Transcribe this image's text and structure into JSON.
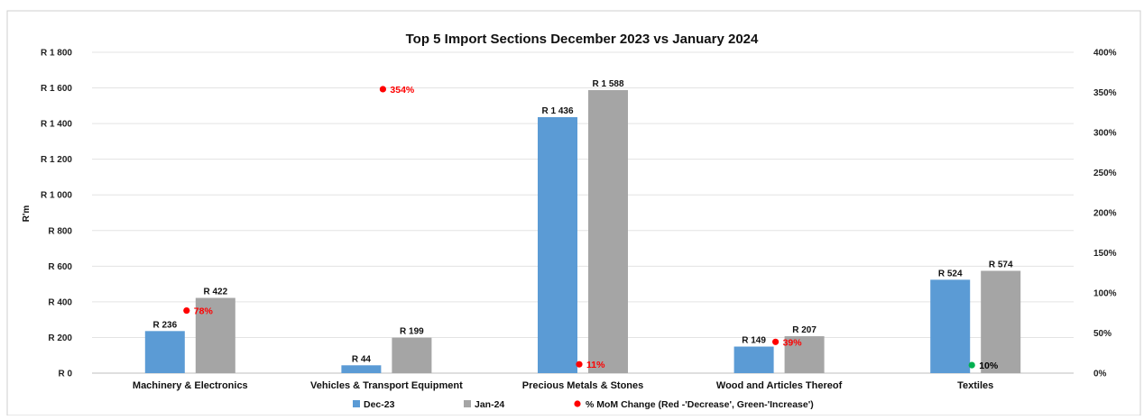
{
  "chart_data": {
    "type": "bar",
    "title": "Top 5 Import Sections December 2023 vs January 2024",
    "ylabel": "R'm",
    "categories": [
      "Machinery & Electronics",
      "Vehicles & Transport Equipment",
      "Precious Metals & Stones",
      "Wood and Articles Thereof",
      "Textiles"
    ],
    "series": [
      {
        "name": "Dec-23",
        "values": [
          236,
          44,
          1436,
          149,
          524
        ],
        "labels": [
          "R 236",
          "R 44",
          "R 1 436",
          "R 149",
          "R 524"
        ],
        "color": "#5b9bd5"
      },
      {
        "name": "Jan-24",
        "values": [
          422,
          199,
          1588,
          207,
          574
        ],
        "labels": [
          "R 422",
          "R 199",
          "R 1 588",
          "R 207",
          "R 574"
        ],
        "color": "#a5a5a5"
      }
    ],
    "pct_series": {
      "name": "% MoM Change (Red -'Decrease', Green-'Increase')",
      "values": [
        78,
        354,
        11,
        39,
        10
      ],
      "labels": [
        "78%",
        "354%",
        "11%",
        "39%",
        "10%"
      ],
      "colors": [
        "#ff0000",
        "#ff0000",
        "#ff0000",
        "#ff0000",
        "#00b050"
      ],
      "label_colors": [
        "#ff0000",
        "#ff0000",
        "#ff0000",
        "#ff0000",
        "#000000"
      ]
    },
    "ylim": [
      0,
      1800
    ],
    "y_ticks": [
      "R 0",
      "R 200",
      "R 400",
      "R 600",
      "R 800",
      "R 1 000",
      "R 1 200",
      "R 1 400",
      "R 1 600",
      "R 1 800"
    ],
    "y2lim": [
      0,
      400
    ],
    "y2_ticks": [
      "0%",
      "50%",
      "100%",
      "150%",
      "200%",
      "250%",
      "300%",
      "350%",
      "400%"
    ],
    "grid": true,
    "legend_position": "bottom"
  }
}
